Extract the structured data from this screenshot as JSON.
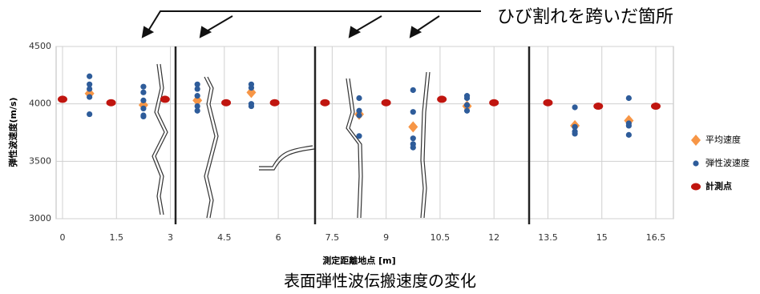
{
  "chart_data": {
    "type": "scatter",
    "annotation": "ひび割れを跨いだ箇所",
    "caption": "表面弾性波伝搬速度の変化",
    "x_label": "測定距離地点 [m]",
    "y_label": "弾性波速度(m/s)",
    "xlim": [
      0,
      16.5
    ],
    "ylim": [
      3000,
      4500
    ],
    "xticks": [
      0,
      1.5,
      3,
      4.5,
      6,
      7.5,
      9,
      10.5,
      12,
      13.5,
      15,
      16.5
    ],
    "yticks": [
      3000,
      3500,
      4000,
      4500
    ],
    "grid": true,
    "legend": "right",
    "series": [
      {
        "name": "平均速度",
        "color": "#f79646",
        "marker": "diamond",
        "x": [
          0.75,
          2.25,
          3.75,
          5.25,
          8.25,
          9.75,
          11.25,
          14.25,
          15.75
        ],
        "values": [
          4090,
          3990,
          4030,
          4100,
          3910,
          3800,
          3980,
          3810,
          3855
        ]
      },
      {
        "name": "弾性波速度",
        "color": "#2e5c9a",
        "marker": "circle",
        "x": [
          0.75,
          0.75,
          0.75,
          0.75,
          0.75,
          2.25,
          2.25,
          2.25,
          2.25,
          2.25,
          2.25,
          3.75,
          3.75,
          3.75,
          3.75,
          3.75,
          5.25,
          5.25,
          5.25,
          5.25,
          8.25,
          8.25,
          8.25,
          8.25,
          9.75,
          9.75,
          9.75,
          9.75,
          9.75,
          11.25,
          11.25,
          11.25,
          11.25,
          14.25,
          14.25,
          14.25,
          14.25,
          15.75,
          15.75,
          15.75,
          15.75
        ],
        "values": [
          4240,
          4170,
          4130,
          4060,
          3910,
          4150,
          4100,
          4030,
          3960,
          3900,
          3890,
          4170,
          4130,
          4070,
          3980,
          3940,
          4170,
          4140,
          4000,
          3980,
          4050,
          3940,
          3900,
          3720,
          4120,
          3930,
          3700,
          3650,
          3620,
          4070,
          4050,
          3990,
          3940,
          3970,
          3800,
          3760,
          3740,
          4050,
          3830,
          3810,
          3730
        ]
      },
      {
        "name": "計測点",
        "color": "#c0150f",
        "marker": "ellipse",
        "x": [
          0,
          1.35,
          2.85,
          4.55,
          5.9,
          7.3,
          9,
          10.55,
          12,
          13.5,
          14.9,
          16.5
        ],
        "values": [
          4040,
          4010,
          4040,
          4010,
          4010,
          4010,
          4010,
          4040,
          4010,
          4010,
          3980,
          3980
        ]
      }
    ]
  }
}
